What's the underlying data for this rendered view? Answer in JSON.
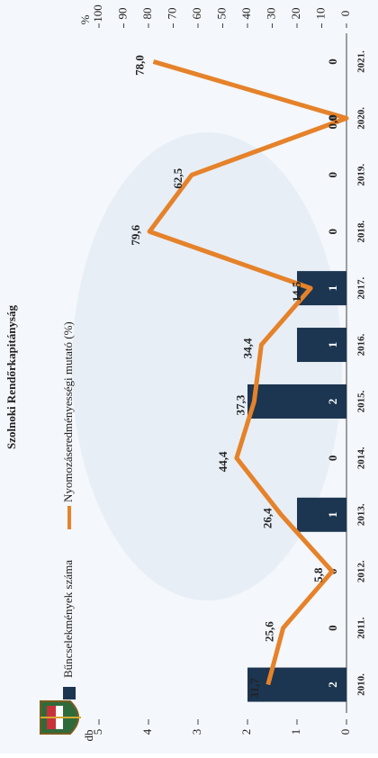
{
  "chart_data": {
    "type": "bar-line",
    "title": "Szolnoki Rendőrkapitányság",
    "categories": [
      "2010.",
      "2011.",
      "2012.",
      "2013.",
      "2014.",
      "2015.",
      "2016.",
      "2017.",
      "2018.",
      "2019.",
      "2020.",
      "2021."
    ],
    "y_label": "db",
    "y2_label": "%",
    "ylim": [
      0,
      5
    ],
    "yticks": [
      0,
      1,
      2,
      3,
      4,
      5
    ],
    "y2lim": [
      0,
      100
    ],
    "y2ticks": [
      0,
      10,
      20,
      30,
      40,
      50,
      60,
      70,
      80,
      90,
      100
    ],
    "legend": "top",
    "series": [
      {
        "name": "Bűncselekmények száma",
        "type": "bar",
        "color": "#1c3550",
        "values": [
          2,
          0,
          0,
          1,
          0,
          2,
          1,
          1,
          0,
          0,
          0,
          0
        ]
      },
      {
        "name": "Nyomozáseredményességi mutató (%)",
        "type": "line",
        "axis": "y2",
        "color": "#e5822a",
        "values": [
          31.7,
          25.6,
          5.8,
          26.4,
          44.4,
          37.3,
          34.4,
          14.5,
          79.6,
          62.5,
          0.0,
          78.0
        ],
        "value_labels": [
          "31,7",
          "25,6",
          "5,8",
          "26,4",
          "44,4",
          "37,3",
          "34,4",
          "14,5",
          "79,6",
          "62,5",
          "0,0",
          "78,0"
        ]
      }
    ]
  }
}
